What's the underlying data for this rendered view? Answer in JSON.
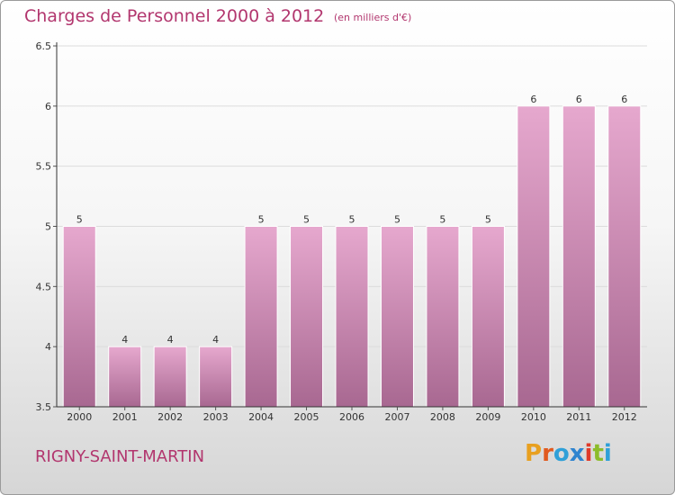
{
  "header": {
    "title": "Charges de Personnel 2000 à 2012",
    "subtitle": "(en milliers d'€)"
  },
  "footer": {
    "commune": "RIGNY-SAINT-MARTIN",
    "logo_letters": [
      "P",
      "r",
      "o",
      "x",
      "i",
      "t",
      "i"
    ],
    "logo_colors": [
      "#e8a020",
      "#e15a1e",
      "#2fa0d8",
      "#2f84cf",
      "#e03a2a",
      "#8cbc2a",
      "#2fa0d8"
    ]
  },
  "colors": {
    "accent": "#b2366e",
    "bar_top": "#e6a8ce",
    "bar_bottom": "#a86891"
  },
  "chart_data": {
    "type": "bar",
    "title": "Charges de Personnel 2000 à 2012",
    "subtitle": "(en milliers d'€)",
    "categories": [
      "2000",
      "2001",
      "2002",
      "2003",
      "2004",
      "2005",
      "2006",
      "2007",
      "2008",
      "2009",
      "2010",
      "2011",
      "2012"
    ],
    "values": [
      5,
      4,
      4,
      4,
      5,
      5,
      5,
      5,
      5,
      5,
      6,
      6,
      6
    ],
    "value_labels": [
      "5",
      "4",
      "4",
      "4",
      "5",
      "5",
      "5",
      "5",
      "5",
      "5",
      "6",
      "6",
      "6"
    ],
    "ylim": [
      3.5,
      6.5
    ],
    "yticks": [
      "3.5",
      "4",
      "4.5",
      "5",
      "5.5",
      "6",
      "6.5"
    ],
    "grid": true
  }
}
